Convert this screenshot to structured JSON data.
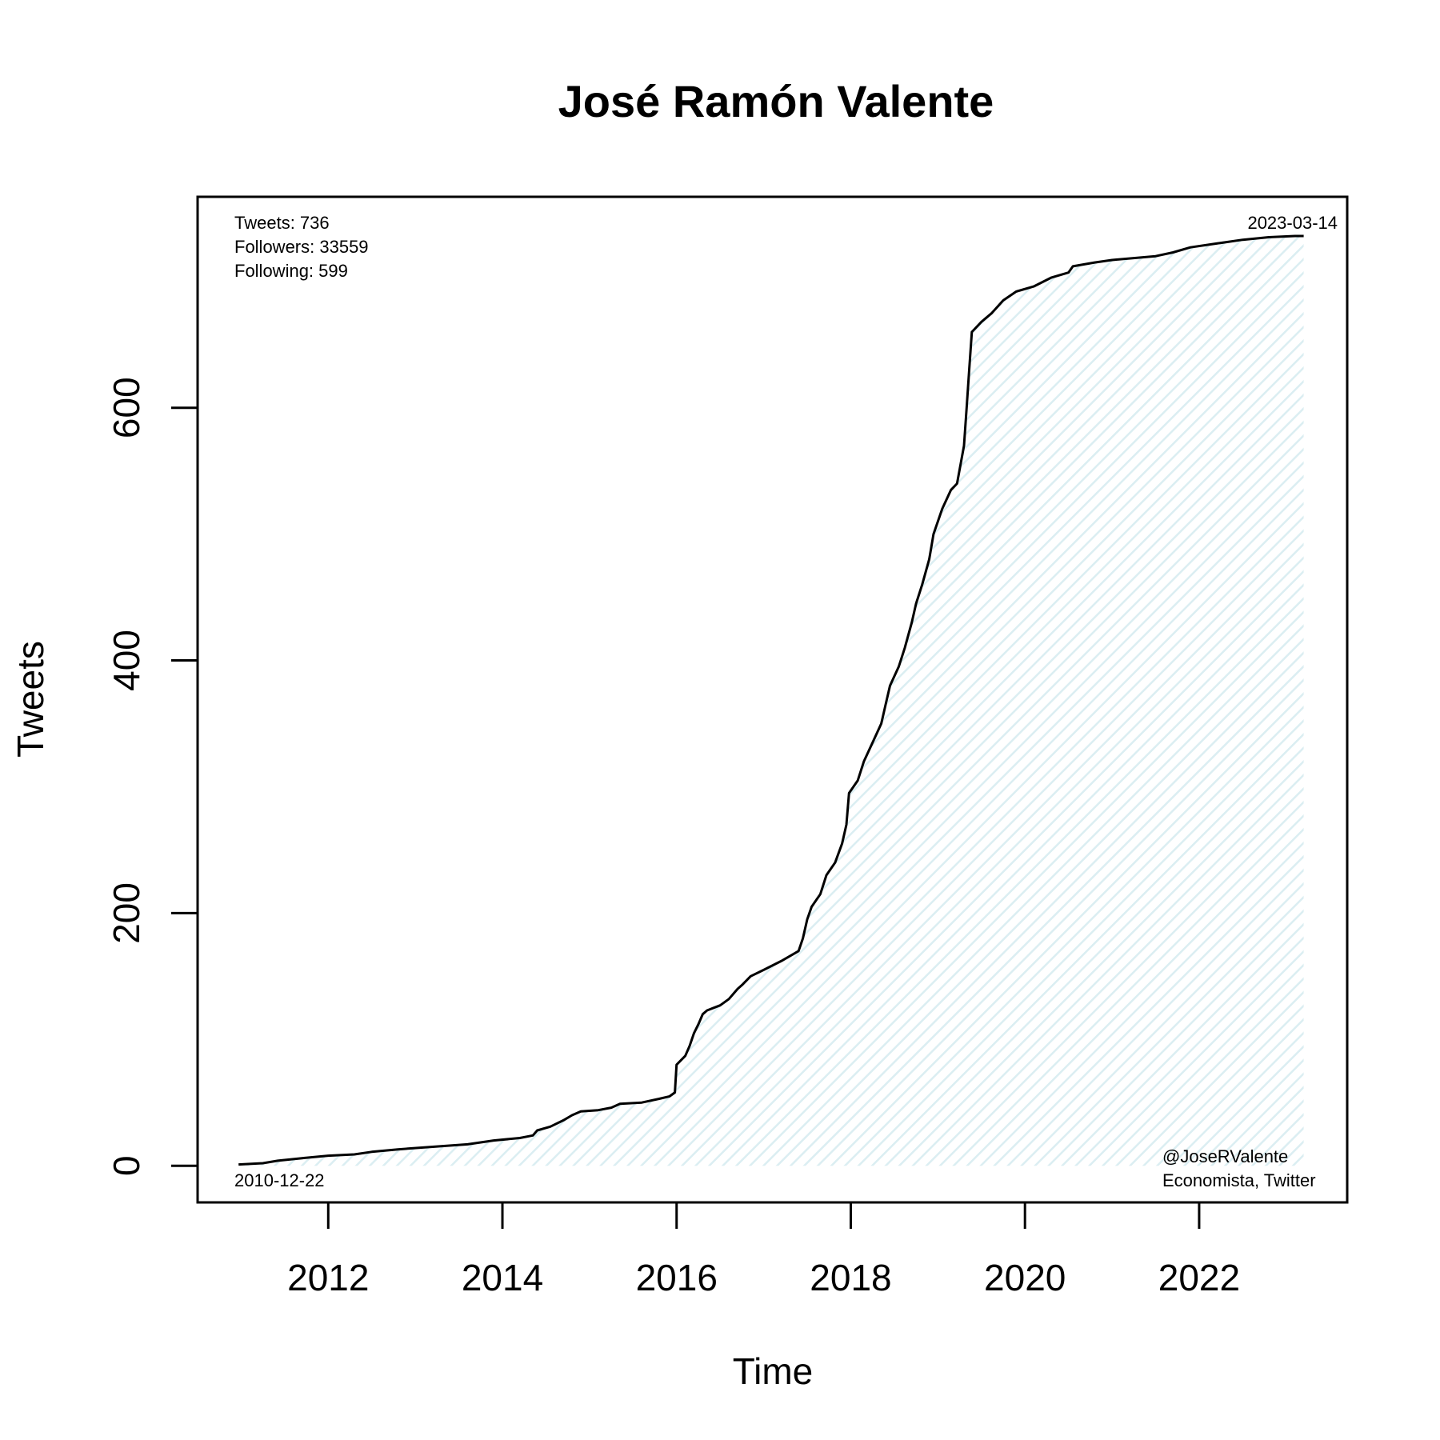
{
  "chart_data": {
    "type": "area",
    "title": "José Ramón Valente",
    "xlabel": "Time",
    "ylabel": "Tweets",
    "xlim": [
      2010.5,
      2023.7
    ],
    "ylim": [
      -29,
      767
    ],
    "x_ticks": [
      2012,
      2014,
      2016,
      2018,
      2020,
      2022
    ],
    "y_ticks": [
      0,
      200,
      400,
      600
    ],
    "grid": false,
    "legend": "none",
    "annotations": {
      "tweets": "Tweets: 736",
      "followers": "Followers: 33559",
      "following": "Following: 599",
      "start_date": "2010-12-22",
      "end_date": "2023-03-14",
      "handle": "@JoseRValente",
      "bio": "Economista, Twitter"
    },
    "colors": {
      "line": "#000000",
      "fill_hatch": "#dbeef2",
      "axis": "#000000"
    },
    "series": [
      {
        "values": [
          [
            2010.97,
            1
          ],
          [
            2011.25,
            2
          ],
          [
            2011.42,
            4
          ],
          [
            2011.7,
            6
          ],
          [
            2012.0,
            8
          ],
          [
            2012.3,
            9
          ],
          [
            2012.5,
            11
          ],
          [
            2012.8,
            13
          ],
          [
            2013.2,
            15
          ],
          [
            2013.6,
            17
          ],
          [
            2013.9,
            20
          ],
          [
            2014.2,
            22
          ],
          [
            2014.35,
            24
          ],
          [
            2014.4,
            28
          ],
          [
            2014.55,
            31
          ],
          [
            2014.7,
            36
          ],
          [
            2014.8,
            40
          ],
          [
            2014.9,
            43
          ],
          [
            2015.1,
            44
          ],
          [
            2015.25,
            46
          ],
          [
            2015.35,
            49
          ],
          [
            2015.6,
            50
          ],
          [
            2015.8,
            53
          ],
          [
            2015.92,
            55
          ],
          [
            2015.98,
            58
          ],
          [
            2016.0,
            80
          ],
          [
            2016.1,
            87
          ],
          [
            2016.15,
            95
          ],
          [
            2016.2,
            105
          ],
          [
            2016.25,
            112
          ],
          [
            2016.3,
            120
          ],
          [
            2016.35,
            123
          ],
          [
            2016.5,
            127
          ],
          [
            2016.6,
            132
          ],
          [
            2016.7,
            140
          ],
          [
            2016.75,
            143
          ],
          [
            2016.85,
            150
          ],
          [
            2017.0,
            155
          ],
          [
            2017.2,
            162
          ],
          [
            2017.4,
            170
          ],
          [
            2017.45,
            180
          ],
          [
            2017.5,
            195
          ],
          [
            2017.55,
            205
          ],
          [
            2017.65,
            215
          ],
          [
            2017.72,
            230
          ],
          [
            2017.82,
            240
          ],
          [
            2017.9,
            255
          ],
          [
            2017.95,
            270
          ],
          [
            2017.98,
            295
          ],
          [
            2018.08,
            305
          ],
          [
            2018.15,
            320
          ],
          [
            2018.25,
            335
          ],
          [
            2018.35,
            350
          ],
          [
            2018.4,
            365
          ],
          [
            2018.45,
            380
          ],
          [
            2018.55,
            395
          ],
          [
            2018.62,
            410
          ],
          [
            2018.7,
            430
          ],
          [
            2018.75,
            445
          ],
          [
            2018.82,
            460
          ],
          [
            2018.9,
            480
          ],
          [
            2018.95,
            500
          ],
          [
            2019.05,
            520
          ],
          [
            2019.15,
            535
          ],
          [
            2019.22,
            540
          ],
          [
            2019.3,
            570
          ],
          [
            2019.33,
            600
          ],
          [
            2019.36,
            630
          ],
          [
            2019.39,
            660
          ],
          [
            2019.5,
            668
          ],
          [
            2019.62,
            675
          ],
          [
            2019.75,
            685
          ],
          [
            2019.9,
            692
          ],
          [
            2020.1,
            696
          ],
          [
            2020.3,
            703
          ],
          [
            2020.5,
            707
          ],
          [
            2020.55,
            712
          ],
          [
            2020.8,
            715
          ],
          [
            2021.0,
            717
          ],
          [
            2021.5,
            720
          ],
          [
            2021.7,
            723
          ],
          [
            2021.9,
            727
          ],
          [
            2022.2,
            730
          ],
          [
            2022.5,
            733
          ],
          [
            2022.8,
            735
          ],
          [
            2023.1,
            736
          ],
          [
            2023.2,
            736
          ]
        ]
      }
    ]
  }
}
